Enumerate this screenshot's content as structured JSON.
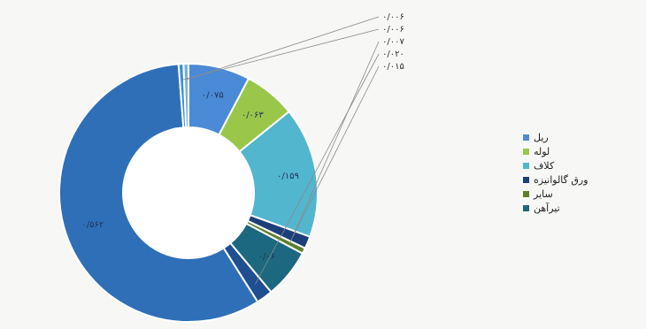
{
  "chart_data": {
    "type": "pie",
    "subtype": "donut",
    "slices": [
      {
        "label": "ریل",
        "value": 0.075,
        "display": "۰/۰۷۵",
        "color": "#4a8ad6"
      },
      {
        "label": "لوله",
        "value": 0.063,
        "display": "۰/۰۶۳",
        "color": "#9ac74a"
      },
      {
        "label": "کلاف",
        "value": 0.159,
        "display": "۰/۱۵۹",
        "color": "#52b6cf"
      },
      {
        "label": "ورق گالوانیزه",
        "value": 0.015,
        "display": "۰/۰۱۵",
        "color": "#1c3f7a"
      },
      {
        "label": "سایر",
        "value": 0.007,
        "display": "۰/۰۰۷",
        "color": "#5d7f2a"
      },
      {
        "label": "تیرآهن",
        "value": 0.06,
        "display": "۰/۰۶",
        "color": "#1b6880"
      },
      {
        "label": "",
        "value": 0.02,
        "display": "۰/۰۲۰",
        "color": "#1f4e91"
      },
      {
        "label": "",
        "value": 0.562,
        "display": "۰/۵۶۲",
        "color": "#2f6fb8"
      },
      {
        "label": "",
        "value": 0.006,
        "display": "۰/۰۰۶",
        "color": "#3d8fd0"
      },
      {
        "label": "",
        "value": 0.006,
        "display": "۰/۰۰۶",
        "color": "#7ab0e0"
      }
    ],
    "callouts": [
      "۰/۰۰۶",
      "۰/۰۰۶",
      "۰/۰۰۷",
      "۰/۰۲۰",
      "۰/۰۱۵"
    ],
    "legend": {
      "position": "right",
      "items": [
        {
          "label": "ریل",
          "color": "#4a8ad6"
        },
        {
          "label": "لوله",
          "color": "#9ac74a"
        },
        {
          "label": "کلاف",
          "color": "#52b6cf"
        },
        {
          "label": "ورق گالوانیزه",
          "color": "#1c3f7a"
        },
        {
          "label": "سایر",
          "color": "#5d7f2a"
        },
        {
          "label": "تیرآهن",
          "color": "#1b6880"
        }
      ]
    }
  }
}
